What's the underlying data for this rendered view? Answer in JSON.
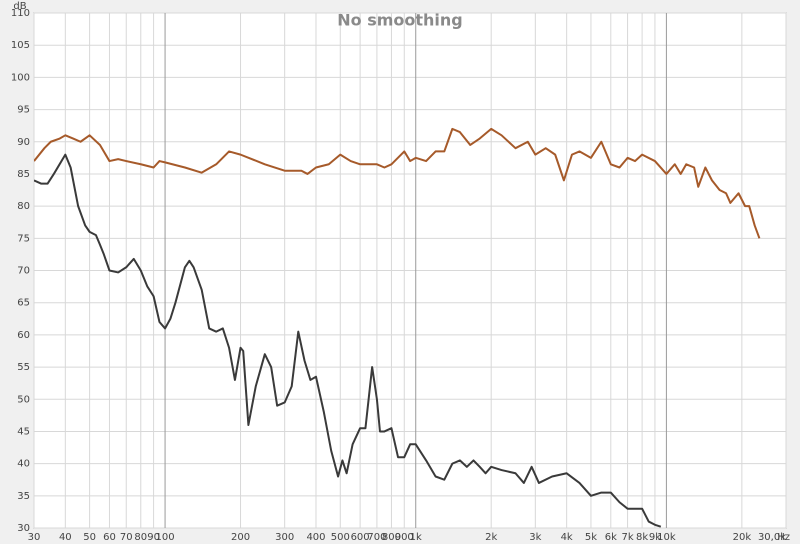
{
  "chart_data": {
    "type": "line",
    "title": "No smoothing",
    "x_label": "Hz",
    "y_label": "dB",
    "log_x": true,
    "grid": true,
    "xlim": [
      30,
      30000
    ],
    "ylim": [
      30,
      110
    ],
    "xticks": [
      30,
      40,
      50,
      60,
      70,
      80,
      90,
      100,
      200,
      300,
      400,
      500,
      600,
      700,
      800,
      900,
      {
        "value": 1000,
        "label": "1k"
      },
      {
        "value": 2000,
        "label": "2k"
      },
      {
        "value": 3000,
        "label": "3k"
      },
      {
        "value": 4000,
        "label": "4k"
      },
      {
        "value": 5000,
        "label": "5k"
      },
      {
        "value": 6000,
        "label": "6k"
      },
      {
        "value": 7000,
        "label": "7k"
      },
      {
        "value": 8000,
        "label": "8k"
      },
      {
        "value": 9000,
        "label": "9k"
      },
      {
        "value": 10000,
        "label": "10k"
      },
      {
        "value": 20000,
        "label": "20k"
      },
      {
        "value": 30000,
        "label": "30,0k"
      }
    ],
    "yticks": [
      30,
      35,
      40,
      45,
      50,
      55,
      60,
      65,
      70,
      75,
      80,
      85,
      90,
      95,
      100,
      105,
      110
    ],
    "series": [
      {
        "color": "#a65a2a",
        "x": [
          30,
          33,
          35,
          38,
          40,
          43,
          46,
          50,
          55,
          60,
          65,
          70,
          80,
          90,
          95,
          100,
          120,
          140,
          160,
          180,
          200,
          250,
          300,
          350,
          370,
          400,
          450,
          500,
          550,
          600,
          700,
          750,
          800,
          900,
          950,
          1000,
          1100,
          1200,
          1300,
          1400,
          1500,
          1650,
          1800,
          2000,
          2200,
          2500,
          2800,
          3000,
          3300,
          3600,
          3900,
          4200,
          4500,
          5000,
          5500,
          6000,
          6500,
          7000,
          7500,
          8000,
          9000,
          10000,
          10800,
          11400,
          12000,
          12900,
          13400,
          14300,
          15200,
          16300,
          17300,
          18000,
          19400,
          20600,
          21400,
          22500,
          23500
        ],
        "values": [
          87,
          89,
          90,
          90.5,
          91,
          90.5,
          90,
          91,
          89.5,
          87,
          87.3,
          87,
          86.5,
          86,
          87,
          86.8,
          86,
          85.2,
          86.5,
          88.5,
          88,
          86.5,
          85.5,
          85.5,
          85,
          86,
          86.5,
          88,
          87,
          86.5,
          86.5,
          86,
          86.5,
          88.5,
          87,
          87.5,
          87,
          88.5,
          88.5,
          92,
          91.5,
          89.5,
          90.5,
          92,
          91,
          89,
          90,
          88,
          89,
          88,
          84,
          88,
          88.5,
          87.5,
          90,
          86.5,
          86,
          87.5,
          87,
          88,
          87,
          85,
          86.5,
          85,
          86.5,
          86,
          83,
          86,
          84,
          82.5,
          82,
          80.5,
          82,
          80,
          80,
          77,
          75
        ]
      },
      {
        "color": "#3a3a3a",
        "x": [
          30,
          32,
          34,
          36,
          40,
          42,
          45,
          48,
          50,
          53,
          55,
          57,
          60,
          65,
          70,
          75,
          80,
          85,
          90,
          95,
          100,
          105,
          110,
          120,
          125,
          130,
          140,
          150,
          160,
          170,
          180,
          190,
          200,
          205,
          215,
          230,
          250,
          265,
          280,
          300,
          320,
          340,
          360,
          380,
          400,
          430,
          460,
          490,
          510,
          530,
          560,
          600,
          630,
          670,
          700,
          720,
          750,
          800,
          850,
          900,
          950,
          1000,
          1100,
          1200,
          1300,
          1400,
          1500,
          1600,
          1700,
          1800,
          1900,
          2000,
          2200,
          2500,
          2700,
          2900,
          3100,
          3500,
          4000,
          4500,
          5000,
          5500,
          6000,
          6500,
          7000,
          8000,
          8500,
          9000,
          9500
        ],
        "values": [
          84,
          83.5,
          83.5,
          85,
          88,
          86,
          80,
          77,
          76,
          75.5,
          74,
          72.5,
          70,
          69.7,
          70.5,
          71.8,
          70,
          67.5,
          66,
          62,
          61,
          62.5,
          65,
          70.5,
          71.5,
          70.5,
          67,
          61,
          60.5,
          61,
          58,
          53,
          58,
          57.5,
          46,
          52,
          57,
          55,
          49,
          49.5,
          52,
          60.5,
          56,
          53,
          53.5,
          48,
          42,
          38,
          40.5,
          38.5,
          43,
          45.5,
          45.5,
          55,
          50,
          45,
          45,
          45.5,
          41,
          41,
          43,
          43,
          40.5,
          38,
          37.5,
          40,
          40.5,
          39.5,
          40.5,
          39.5,
          38.5,
          39.5,
          39,
          38.5,
          37,
          39.5,
          37,
          38,
          38.5,
          37,
          35,
          35.5,
          35.5,
          34,
          33,
          33,
          31,
          30.5,
          30.2
        ]
      }
    ]
  }
}
